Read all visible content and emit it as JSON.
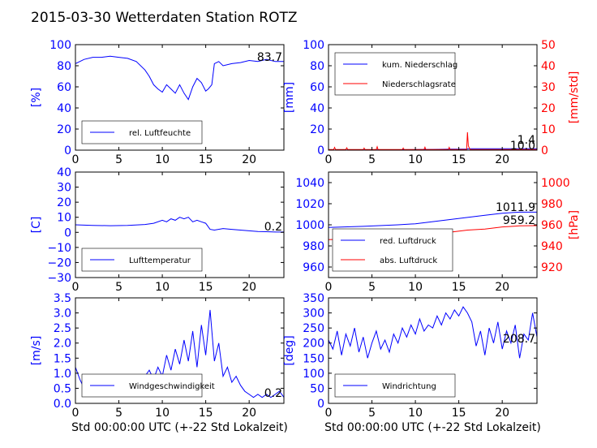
{
  "figure": {
    "title": "2015-03-30 Wetterdaten Station ROTZ",
    "xlabel": "Std 00:00:00 UTC (+-22 Std Lokalzeit)"
  },
  "colors": {
    "primary": "#0000ff",
    "secondary": "#ff0000",
    "text": "#000000"
  },
  "chart_data": [
    {
      "type": "line",
      "id": "humidity",
      "ylabel": "[%]",
      "xlim": [
        0,
        24
      ],
      "ylim": [
        0,
        100
      ],
      "xticks": [
        "0",
        "5",
        "10",
        "15",
        "20"
      ],
      "yticks": [
        "0",
        "20",
        "40",
        "60",
        "80",
        "100"
      ],
      "legend_position": "lower-left",
      "value_label": "83.7",
      "series": [
        {
          "name": "rel. Luftfeuchte",
          "color": "#0000ff",
          "x": [
            0,
            1,
            2,
            3,
            4,
            5,
            6,
            7,
            8,
            8.5,
            9,
            9.5,
            10,
            10.5,
            11,
            11.5,
            12,
            12.5,
            13,
            13.5,
            14,
            14.5,
            15,
            15.3,
            15.7,
            16,
            16.5,
            17,
            18,
            19,
            20,
            21,
            22,
            23,
            24
          ],
          "y": [
            82,
            86,
            88,
            88,
            89,
            88,
            87,
            84,
            76,
            70,
            62,
            58,
            55,
            62,
            58,
            54,
            62,
            54,
            48,
            60,
            68,
            64,
            56,
            58,
            62,
            82,
            84,
            80,
            82,
            83,
            85,
            84,
            86,
            84,
            84
          ]
        }
      ]
    },
    {
      "type": "line",
      "id": "precip",
      "ylabel": "[mm]",
      "y2label": "[mm/std]",
      "xlim": [
        0,
        24
      ],
      "ylim": [
        0,
        100
      ],
      "y2lim": [
        0,
        50
      ],
      "xticks": [
        "0",
        "5",
        "10",
        "15",
        "20"
      ],
      "yticks": [
        "0",
        "20",
        "40",
        "60",
        "80",
        "100"
      ],
      "y2ticks": [
        "0",
        "10",
        "20",
        "30",
        "40",
        "50"
      ],
      "legend_position": "top-left",
      "value_labels": [
        "1.4",
        "10.0"
      ],
      "series": [
        {
          "name": "kum. Niederschlag",
          "color": "#0000ff",
          "axis": "left",
          "x": [
            0,
            2,
            4,
            6,
            8,
            10,
            12,
            14,
            15.9,
            16.1,
            18,
            20,
            22,
            24
          ],
          "y": [
            0,
            0.1,
            0.2,
            0.3,
            0.4,
            0.5,
            0.7,
            0.9,
            1.0,
            1.3,
            1.3,
            1.4,
            1.4,
            1.4
          ]
        },
        {
          "name": "Niederschlagsrate",
          "color": "#ff0000",
          "axis": "right",
          "x": [
            0,
            0.6,
            0.7,
            0.8,
            2,
            2.1,
            2.2,
            4,
            4.1,
            4.2,
            5.5,
            5.6,
            5.7,
            7,
            8.5,
            8.6,
            8.7,
            11,
            11.1,
            11.2,
            13.8,
            13.9,
            14,
            15.9,
            16,
            16.1,
            16.3,
            24
          ],
          "y": [
            0.3,
            0.3,
            1.3,
            0.3,
            0.3,
            1.1,
            0.3,
            0.3,
            1.0,
            0.3,
            0.3,
            1.6,
            0.3,
            0.3,
            0.3,
            1.0,
            0.3,
            0.3,
            1.4,
            0.3,
            0.3,
            1.3,
            0.3,
            0.3,
            8.5,
            2.0,
            0.3,
            0.3
          ]
        }
      ]
    },
    {
      "type": "line",
      "id": "temperature",
      "ylabel": "[C]",
      "xlim": [
        0,
        24
      ],
      "ylim": [
        -30,
        40
      ],
      "xticks": [
        "0",
        "5",
        "10",
        "15",
        "20"
      ],
      "yticks": [
        "−30",
        "−20",
        "−10",
        "0",
        "10",
        "20",
        "30",
        "40"
      ],
      "legend_position": "lower-left",
      "value_label": "0.2",
      "series": [
        {
          "name": "Lufttemperatur",
          "color": "#0000ff",
          "x": [
            0,
            2,
            4,
            6,
            8,
            9,
            10,
            10.5,
            11,
            11.5,
            12,
            12.5,
            13,
            13.5,
            14,
            14.5,
            15,
            15.5,
            16,
            17,
            18,
            19,
            20,
            21,
            22,
            23,
            24
          ],
          "y": [
            5,
            4.6,
            4.4,
            4.6,
            5.2,
            6,
            8,
            7,
            9,
            8,
            10,
            9,
            10,
            7,
            8,
            7,
            6,
            2,
            1.5,
            2.5,
            2,
            1.5,
            1,
            0.6,
            0.4,
            0.2,
            0.2
          ]
        }
      ]
    },
    {
      "type": "line",
      "id": "pressure",
      "ylabel": "",
      "y2label": "[hPa]",
      "xlim": [
        0,
        24
      ],
      "ylim": [
        950,
        1050
      ],
      "y2lim": [
        910,
        1010
      ],
      "xticks": [
        "0",
        "5",
        "10",
        "15",
        "20"
      ],
      "yticks": [
        "960",
        "980",
        "1000",
        "1020",
        "1040"
      ],
      "y2ticks": [
        "920",
        "940",
        "960",
        "980",
        "1000"
      ],
      "legend_position": "lower-center",
      "value_labels": [
        "1011.9",
        "959.2"
      ],
      "series": [
        {
          "name": "red. Luftdruck",
          "color": "#0000ff",
          "axis": "left",
          "x": [
            0,
            4,
            8,
            10,
            12,
            14,
            16,
            18,
            20,
            22,
            24
          ],
          "y": [
            997.5,
            998.5,
            1000,
            1001,
            1003,
            1005,
            1007,
            1009,
            1011,
            1012,
            1012
          ]
        },
        {
          "name": "abs. Luftdruck",
          "color": "#ff0000",
          "axis": "right",
          "x": [
            0,
            4,
            8,
            10,
            12,
            14,
            16,
            18,
            20,
            22,
            24
          ],
          "y": [
            946,
            947,
            948,
            949,
            951,
            953,
            955,
            956,
            958,
            959,
            959.2
          ]
        }
      ]
    },
    {
      "type": "line",
      "id": "wind",
      "ylabel": "[m/s]",
      "xlim": [
        0,
        24
      ],
      "ylim": [
        0,
        3.5
      ],
      "xticks": [
        "0",
        "5",
        "10",
        "15",
        "20"
      ],
      "yticks": [
        "0.0",
        "0.5",
        "1.0",
        "1.5",
        "2.0",
        "2.5",
        "3.0",
        "3.5"
      ],
      "legend_position": "lower-left",
      "value_label": "0.2",
      "series": [
        {
          "name": "Windgeschwindigkeit",
          "color": "#0000ff",
          "x": [
            0,
            0.5,
            1,
            1.5,
            2,
            2.5,
            3,
            3.5,
            4,
            4.5,
            5,
            5.5,
            6,
            6.5,
            7,
            7.5,
            8,
            8.5,
            9,
            9.5,
            10,
            10.5,
            11,
            11.5,
            12,
            12.5,
            13,
            13.5,
            14,
            14.5,
            15,
            15.5,
            16,
            16.5,
            17,
            17.5,
            18,
            18.5,
            19,
            19.5,
            20,
            20.5,
            21,
            21.5,
            22,
            22.5,
            23,
            23.5,
            24
          ],
          "y": [
            1.2,
            0.8,
            0.5,
            0.9,
            0.6,
            0.4,
            0.7,
            0.3,
            0.6,
            0.4,
            0.5,
            0.7,
            0.4,
            0.8,
            0.6,
            0.5,
            0.9,
            1.1,
            0.8,
            1.2,
            0.9,
            1.6,
            1.1,
            1.8,
            1.3,
            2.1,
            1.4,
            2.4,
            1.2,
            2.6,
            1.6,
            3.1,
            1.4,
            2.0,
            0.9,
            1.2,
            0.7,
            0.9,
            0.6,
            0.4,
            0.3,
            0.2,
            0.3,
            0.2,
            0.3,
            0.2,
            0.3,
            0.4,
            0.2
          ]
        }
      ]
    },
    {
      "type": "line",
      "id": "winddir",
      "ylabel": "[deg]",
      "xlim": [
        0,
        24
      ],
      "ylim": [
        0,
        350
      ],
      "xticks": [
        "0",
        "5",
        "10",
        "15",
        "20"
      ],
      "yticks": [
        "0",
        "50",
        "100",
        "150",
        "200",
        "250",
        "300",
        "350"
      ],
      "legend_position": "lower-left",
      "value_label": "208.7",
      "series": [
        {
          "name": "Windrichtung",
          "color": "#0000ff",
          "x": [
            0,
            0.5,
            1,
            1.5,
            2,
            2.5,
            3,
            3.5,
            4,
            4.5,
            5,
            5.5,
            6,
            6.5,
            7,
            7.5,
            8,
            8.5,
            9,
            9.5,
            10,
            10.5,
            11,
            11.5,
            12,
            12.5,
            13,
            13.5,
            14,
            14.5,
            15,
            15.5,
            16,
            16.5,
            17,
            17.5,
            18,
            18.5,
            19,
            19.5,
            20,
            20.5,
            21,
            21.5,
            22,
            22.5,
            23,
            23.5,
            24
          ],
          "y": [
            210,
            180,
            240,
            160,
            230,
            190,
            250,
            170,
            220,
            150,
            200,
            240,
            180,
            210,
            170,
            230,
            200,
            250,
            220,
            260,
            230,
            280,
            240,
            260,
            250,
            290,
            260,
            300,
            280,
            310,
            290,
            320,
            300,
            270,
            190,
            240,
            160,
            250,
            200,
            270,
            180,
            240,
            200,
            260,
            150,
            230,
            210,
            300,
            220
          ]
        }
      ]
    }
  ]
}
